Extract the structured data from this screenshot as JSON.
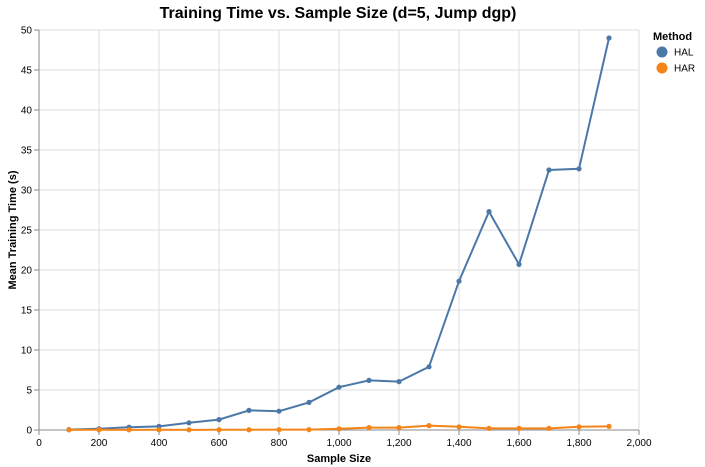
{
  "chart_data": {
    "type": "line",
    "title": "Training Time vs. Sample Size (d=5, Jump dgp)",
    "xlabel": "Sample Size",
    "ylabel": "Mean Training Time (s)",
    "xlim": [
      0,
      2000
    ],
    "ylim": [
      0,
      50
    ],
    "x_ticks": [
      0,
      200,
      400,
      600,
      800,
      1000,
      1200,
      1400,
      1600,
      1800,
      2000
    ],
    "x_tick_labels": [
      "0",
      "200",
      "400",
      "600",
      "800",
      "1,000",
      "1,200",
      "1,400",
      "1,600",
      "1,800",
      "2,000"
    ],
    "y_ticks": [
      0,
      5,
      10,
      15,
      20,
      25,
      30,
      35,
      40,
      45,
      50
    ],
    "y_tick_labels": [
      "0",
      "5",
      "10",
      "15",
      "20",
      "25",
      "30",
      "35",
      "40",
      "45",
      "50"
    ],
    "grid": true,
    "legend": {
      "title": "Method",
      "placement": "top-right"
    },
    "x": [
      100,
      200,
      300,
      400,
      500,
      600,
      700,
      800,
      900,
      1000,
      1100,
      1200,
      1300,
      1400,
      1500,
      1600,
      1700,
      1800,
      1900
    ],
    "series": [
      {
        "name": "HAL",
        "color": "#4c78a8",
        "values": [
          0.05,
          0.15,
          0.35,
          0.45,
          0.9,
          1.3,
          2.45,
          2.35,
          3.45,
          5.35,
          6.2,
          6.05,
          7.9,
          18.6,
          27.3,
          20.7,
          32.5,
          32.65,
          49.0
        ]
      },
      {
        "name": "HAR",
        "color": "#f58518",
        "values": [
          0.02,
          0.03,
          0.02,
          0.03,
          0.02,
          0.03,
          0.03,
          0.04,
          0.05,
          0.15,
          0.3,
          0.3,
          0.55,
          0.4,
          0.2,
          0.2,
          0.2,
          0.4,
          0.45
        ]
      }
    ]
  }
}
